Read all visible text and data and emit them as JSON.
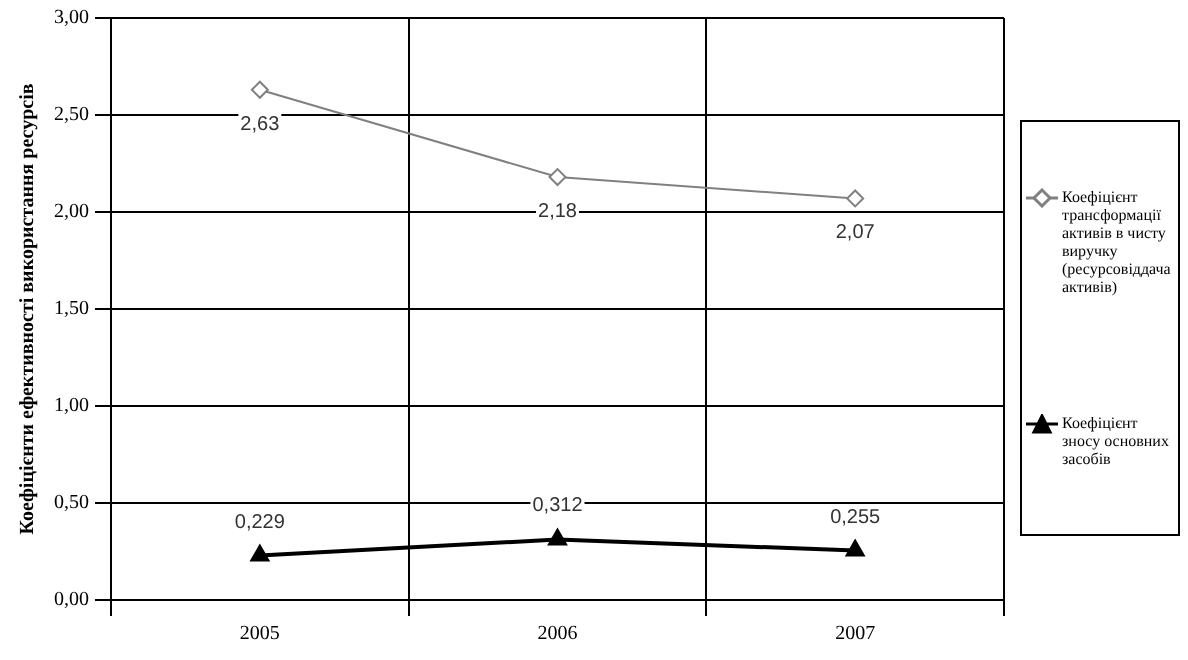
{
  "chart_data": {
    "type": "line",
    "ylabel": "Коефіцієнти ефективності використання ресурсів",
    "categories": [
      "2005",
      "2006",
      "2007"
    ],
    "series": [
      {
        "name": "Коефіцієнт трансформації активів в чисту виручку (ресурсовіддача активів)",
        "color": "#808080",
        "marker": "diamond",
        "values": [
          2.63,
          2.18,
          2.07
        ],
        "value_labels": [
          "2,63",
          "2,18",
          "2,07"
        ]
      },
      {
        "name": "Коефіцієнт зносу основних засобів",
        "color": "#000000",
        "marker": "triangle",
        "values": [
          0.229,
          0.312,
          0.255
        ],
        "value_labels": [
          "0,229",
          "0,312",
          "0,255"
        ]
      }
    ],
    "ylim": [
      0,
      3
    ],
    "yticks": [
      {
        "value": 0,
        "label": "0,00"
      },
      {
        "value": 0.5,
        "label": "0,50"
      },
      {
        "value": 1,
        "label": "1,00"
      },
      {
        "value": 1.5,
        "label": "1,50"
      },
      {
        "value": 2,
        "label": "2,00"
      },
      {
        "value": 2.5,
        "label": "2,50"
      },
      {
        "value": 3,
        "label": "3,00"
      }
    ],
    "grid": true,
    "legend": "right",
    "line_style": "solid"
  }
}
